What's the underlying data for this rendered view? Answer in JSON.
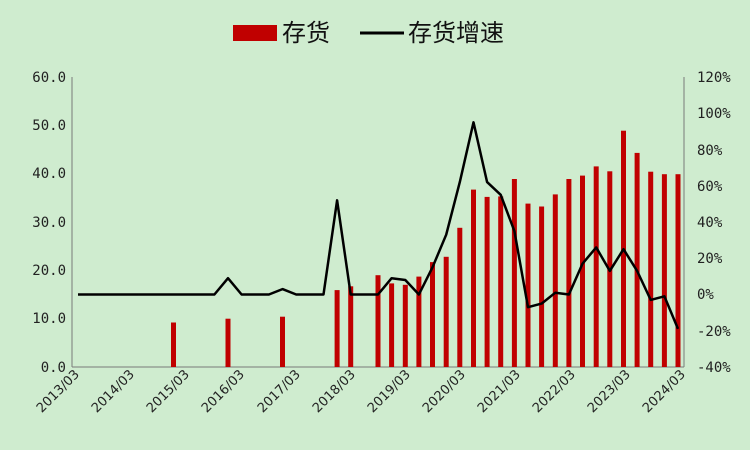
{
  "chart_data": {
    "type": "bar+line",
    "legend": {
      "position": "top-center",
      "items": [
        "存货",
        "存货增速"
      ]
    },
    "colors": {
      "bar": "#c00000",
      "line": "#000000",
      "background": "#cfeccf"
    },
    "y_left": {
      "ticks": [
        "60.0",
        "50.0",
        "40.0",
        "30.0",
        "20.0",
        "10.0",
        "0.0"
      ],
      "range": [
        0,
        60
      ]
    },
    "y_right": {
      "ticks": [
        "120%",
        "100%",
        "80%",
        "60%",
        "40%",
        "20%",
        "0%",
        "-20%",
        "-40%"
      ],
      "range": [
        -40,
        120
      ]
    },
    "x_ticks": [
      "2013/03",
      "2014/03",
      "2015/03",
      "2016/03",
      "2017/03",
      "2018/03",
      "2019/03",
      "2020/03",
      "2021/03",
      "2022/03",
      "2023/03",
      "2024/03"
    ],
    "grid": false,
    "series": [
      {
        "name": "存货",
        "type": "bar",
        "axis": "left",
        "points": [
          [
            2014.75,
            9.2
          ],
          [
            2015.75,
            10.0
          ],
          [
            2016.75,
            10.4
          ],
          [
            2017.75,
            15.9
          ],
          [
            2018.0,
            16.7
          ],
          [
            2018.5,
            19.0
          ],
          [
            2018.75,
            17.3
          ],
          [
            2019.0,
            17.0
          ],
          [
            2019.25,
            18.7
          ],
          [
            2019.5,
            21.7
          ],
          [
            2019.75,
            22.8
          ],
          [
            2020.0,
            28.8
          ],
          [
            2020.25,
            36.7
          ],
          [
            2020.5,
            35.2
          ],
          [
            2020.75,
            35.3
          ],
          [
            2021.0,
            38.9
          ],
          [
            2021.25,
            33.8
          ],
          [
            2021.5,
            33.2
          ],
          [
            2021.75,
            35.7
          ],
          [
            2022.0,
            38.9
          ],
          [
            2022.25,
            39.6
          ],
          [
            2022.5,
            41.5
          ],
          [
            2022.75,
            40.5
          ],
          [
            2023.0,
            48.9
          ],
          [
            2023.25,
            44.3
          ],
          [
            2023.5,
            40.4
          ],
          [
            2023.75,
            39.9
          ],
          [
            2024.0,
            39.9
          ]
        ]
      },
      {
        "name": "存货增速",
        "type": "line",
        "axis": "right",
        "points": [
          [
            2013.0,
            0
          ],
          [
            2015.5,
            0
          ],
          [
            2015.75,
            9
          ],
          [
            2016.0,
            0
          ],
          [
            2016.5,
            0
          ],
          [
            2016.75,
            3
          ],
          [
            2017.0,
            0
          ],
          [
            2017.5,
            0
          ],
          [
            2017.75,
            52
          ],
          [
            2018.0,
            0
          ],
          [
            2018.5,
            0
          ],
          [
            2018.75,
            9
          ],
          [
            2019.0,
            8
          ],
          [
            2019.25,
            0
          ],
          [
            2019.5,
            15
          ],
          [
            2019.75,
            33
          ],
          [
            2020.0,
            62
          ],
          [
            2020.25,
            95
          ],
          [
            2020.5,
            62
          ],
          [
            2020.75,
            55
          ],
          [
            2021.0,
            35
          ],
          [
            2021.25,
            -7
          ],
          [
            2021.5,
            -5
          ],
          [
            2021.75,
            1
          ],
          [
            2022.0,
            0
          ],
          [
            2022.25,
            17
          ],
          [
            2022.5,
            26
          ],
          [
            2022.75,
            13
          ],
          [
            2023.0,
            25
          ],
          [
            2023.25,
            13
          ],
          [
            2023.5,
            -3
          ],
          [
            2023.75,
            -1
          ],
          [
            2024.0,
            -19
          ]
        ]
      }
    ]
  }
}
